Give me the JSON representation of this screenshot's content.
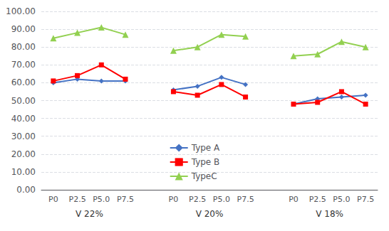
{
  "chart_data": {
    "type": "line",
    "categories": [
      "P0",
      "P2.5",
      "P5.0",
      "P7.5",
      null,
      "P0",
      "P2.5",
      "P5.0",
      "P7.5",
      null,
      "P0",
      "P2.5",
      "P5.0",
      "P7.5"
    ],
    "series": [
      {
        "name": "Type A",
        "color": "#4472C4",
        "marker": "diamond",
        "values": [
          60,
          62,
          61,
          61,
          null,
          56,
          58,
          63,
          59,
          null,
          48,
          51,
          52,
          53
        ]
      },
      {
        "name": "Type B",
        "color": "#FF0000",
        "marker": "square",
        "values": [
          61,
          64,
          70,
          62,
          null,
          55,
          53,
          59,
          52,
          null,
          48,
          49,
          55,
          48
        ]
      },
      {
        "name": "TypeC",
        "color": "#92D050",
        "marker": "triangle",
        "values": [
          85,
          88,
          91,
          87,
          null,
          78,
          80,
          87,
          86,
          null,
          75,
          76,
          83,
          80
        ]
      }
    ],
    "annotations": [
      "V 22%",
      "V 20%",
      "V 18%"
    ],
    "ylim": [
      0,
      100
    ],
    "yticks": [
      {
        "value": 0,
        "label": "0.00"
      },
      {
        "value": 10,
        "label": "10.00"
      },
      {
        "value": 20,
        "label": "20.00"
      },
      {
        "value": 30,
        "label": "30.00"
      },
      {
        "value": 40,
        "label": "40.00"
      },
      {
        "value": 50,
        "label": "50.00"
      },
      {
        "value": 60,
        "label": "60.00"
      },
      {
        "value": 70,
        "label": "70.00"
      },
      {
        "value": 80,
        "label": "80.00"
      },
      {
        "value": 90,
        "label": "90.00"
      },
      {
        "value": 100,
        "label": "100.00"
      }
    ],
    "grid": true,
    "legend": "bottom"
  }
}
